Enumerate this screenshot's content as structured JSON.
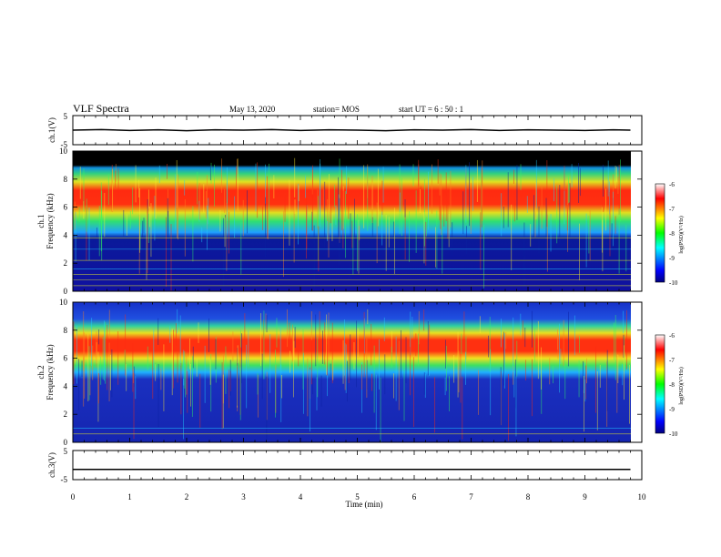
{
  "header": {
    "title": "VLF Spectra",
    "date": "May 13, 2020",
    "station": "station= MOS",
    "start_ut": "start  UT  =   6  : 50 : 1"
  },
  "chart_data": [
    {
      "type": "line",
      "name_label": "ch.1(V)",
      "ylabel": "ch.1(V)",
      "ylim": [
        -5,
        5
      ],
      "yticks": [
        5,
        -5
      ],
      "xlim": [
        0,
        10
      ],
      "x": [
        0,
        0.5,
        1,
        1.5,
        2,
        2.5,
        3,
        3.5,
        4,
        4.5,
        5,
        5.5,
        6,
        6.5,
        7,
        7.5,
        8,
        8.5,
        9,
        9.5,
        9.8
      ],
      "y": [
        0,
        0.2,
        -0.1,
        0.1,
        -0.2,
        0.1,
        0,
        0.2,
        -0.1,
        0.1,
        0,
        -0.2,
        0.1,
        0,
        0.2,
        -0.1,
        0.1,
        0,
        -0.1,
        0.1,
        0
      ]
    },
    {
      "type": "heatmap",
      "ylabel": "Frequency (kHz)",
      "channel_label": "ch.1",
      "ylim": [
        0,
        10
      ],
      "yticks": [
        0,
        2,
        4,
        6,
        8,
        10
      ],
      "xlim": [
        0,
        10
      ],
      "data_end_min": 9.8,
      "colorbar": {
        "label": "log(PSD)(V²/Hz)",
        "range": [
          -10,
          -6
        ],
        "ticks": [
          "-6",
          "-7",
          "-8",
          "-9",
          "-10"
        ]
      }
    },
    {
      "type": "heatmap",
      "ylabel": "Frequency (kHz)",
      "channel_label": "ch.2",
      "ylim": [
        0,
        10
      ],
      "yticks": [
        0,
        2,
        4,
        6,
        8,
        10
      ],
      "xlim": [
        0,
        10
      ],
      "data_end_min": 9.8,
      "colorbar": {
        "label": "log(PSD)(V²/Hz)",
        "range": [
          -10,
          -6
        ],
        "ticks": [
          "-6",
          "-7",
          "-8",
          "-9",
          "-10"
        ]
      }
    },
    {
      "type": "line",
      "ylabel": "ch.3(V)",
      "ylim": [
        -5,
        5
      ],
      "yticks": [
        5,
        -5
      ],
      "xlim": [
        0,
        10
      ],
      "x": [
        0,
        9.8
      ],
      "y": [
        -1.5,
        -1.5
      ]
    }
  ],
  "x_axis": {
    "label": "Time  (min)",
    "ticks": [
      "0",
      "1",
      "2",
      "3",
      "4",
      "5",
      "6",
      "7",
      "8",
      "9",
      "10"
    ]
  },
  "colors": {
    "axis": "#000000",
    "background": "#ffffff"
  }
}
